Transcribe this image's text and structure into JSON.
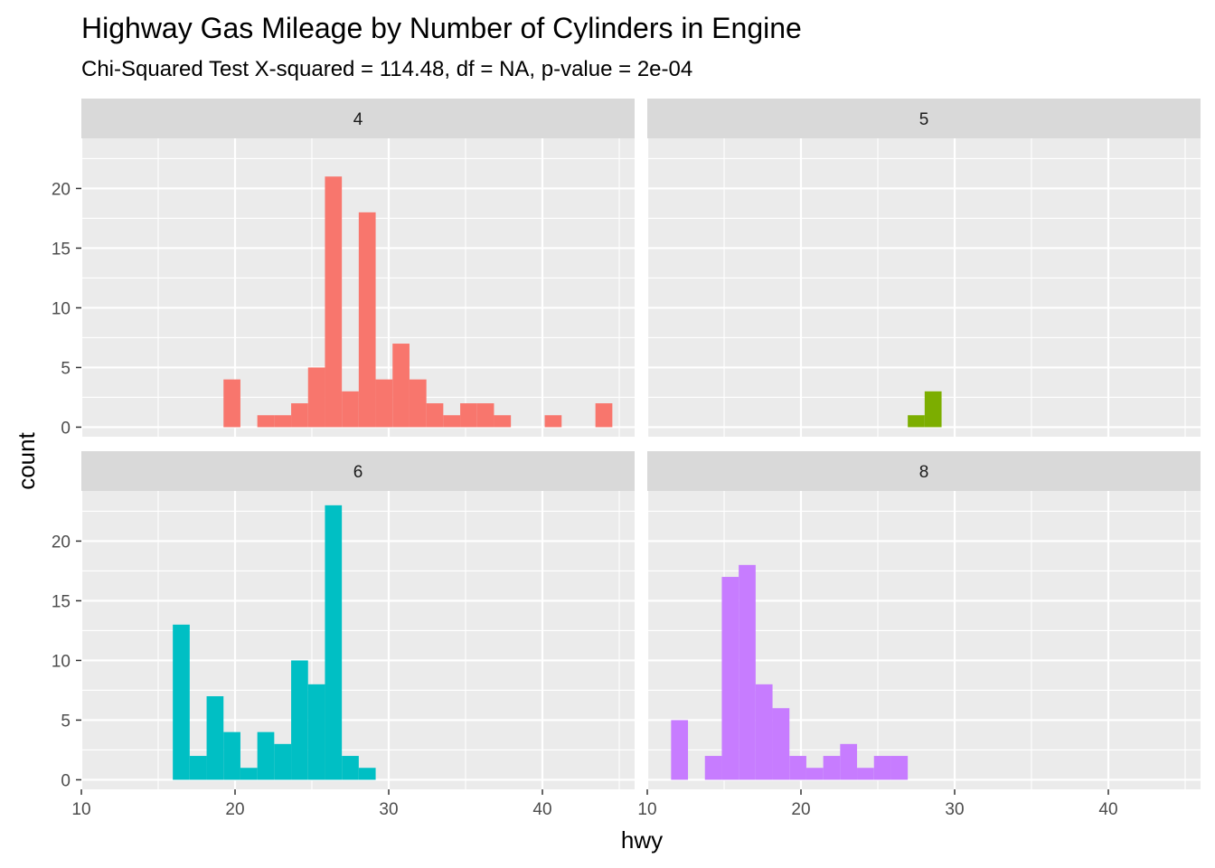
{
  "chart_data": {
    "type": "bar",
    "title": "Highway Gas Mileage by Number of Cylinders in Engine",
    "subtitle": "Chi-Squared Test  X-squared = 114.48, df = NA, p-value = 2e-04",
    "xlabel": "hwy",
    "ylabel": "count",
    "xlim": [
      10,
      46
    ],
    "ylim": [
      -0.8,
      24.2
    ],
    "x_ticks": [
      10,
      20,
      30,
      40
    ],
    "y_ticks": [
      0,
      5,
      10,
      15,
      20
    ],
    "bin_width": 1.1,
    "legend": "none",
    "grid": true,
    "facets": [
      {
        "label": "4",
        "color": "#F8766D",
        "bins": [
          {
            "x": 19.8,
            "count": 4
          },
          {
            "x": 22.0,
            "count": 1
          },
          {
            "x": 23.1,
            "count": 1
          },
          {
            "x": 24.2,
            "count": 2
          },
          {
            "x": 25.3,
            "count": 5
          },
          {
            "x": 26.4,
            "count": 21
          },
          {
            "x": 27.5,
            "count": 3
          },
          {
            "x": 28.6,
            "count": 18
          },
          {
            "x": 29.7,
            "count": 4
          },
          {
            "x": 30.8,
            "count": 7
          },
          {
            "x": 31.9,
            "count": 4
          },
          {
            "x": 33.0,
            "count": 2
          },
          {
            "x": 34.1,
            "count": 1
          },
          {
            "x": 35.2,
            "count": 2
          },
          {
            "x": 36.3,
            "count": 2
          },
          {
            "x": 37.4,
            "count": 1
          },
          {
            "x": 40.7,
            "count": 1
          },
          {
            "x": 44.0,
            "count": 2
          }
        ]
      },
      {
        "label": "5",
        "color": "#7CAE00",
        "bins": [
          {
            "x": 27.5,
            "count": 1
          },
          {
            "x": 28.6,
            "count": 3
          }
        ]
      },
      {
        "label": "6",
        "color": "#00BFC4",
        "bins": [
          {
            "x": 16.5,
            "count": 13
          },
          {
            "x": 17.6,
            "count": 2
          },
          {
            "x": 18.7,
            "count": 7
          },
          {
            "x": 19.8,
            "count": 4
          },
          {
            "x": 20.9,
            "count": 1
          },
          {
            "x": 22.0,
            "count": 4
          },
          {
            "x": 23.1,
            "count": 3
          },
          {
            "x": 24.2,
            "count": 10
          },
          {
            "x": 25.3,
            "count": 8
          },
          {
            "x": 26.4,
            "count": 23
          },
          {
            "x": 27.5,
            "count": 2
          },
          {
            "x": 28.6,
            "count": 1
          }
        ]
      },
      {
        "label": "8",
        "color": "#C77CFF",
        "bins": [
          {
            "x": 12.1,
            "count": 5
          },
          {
            "x": 14.3,
            "count": 2
          },
          {
            "x": 15.4,
            "count": 17
          },
          {
            "x": 16.5,
            "count": 18
          },
          {
            "x": 17.6,
            "count": 8
          },
          {
            "x": 18.7,
            "count": 6
          },
          {
            "x": 19.8,
            "count": 2
          },
          {
            "x": 20.9,
            "count": 1
          },
          {
            "x": 22.0,
            "count": 2
          },
          {
            "x": 23.1,
            "count": 3
          },
          {
            "x": 24.2,
            "count": 1
          },
          {
            "x": 25.3,
            "count": 2
          },
          {
            "x": 26.4,
            "count": 2
          }
        ]
      }
    ]
  }
}
